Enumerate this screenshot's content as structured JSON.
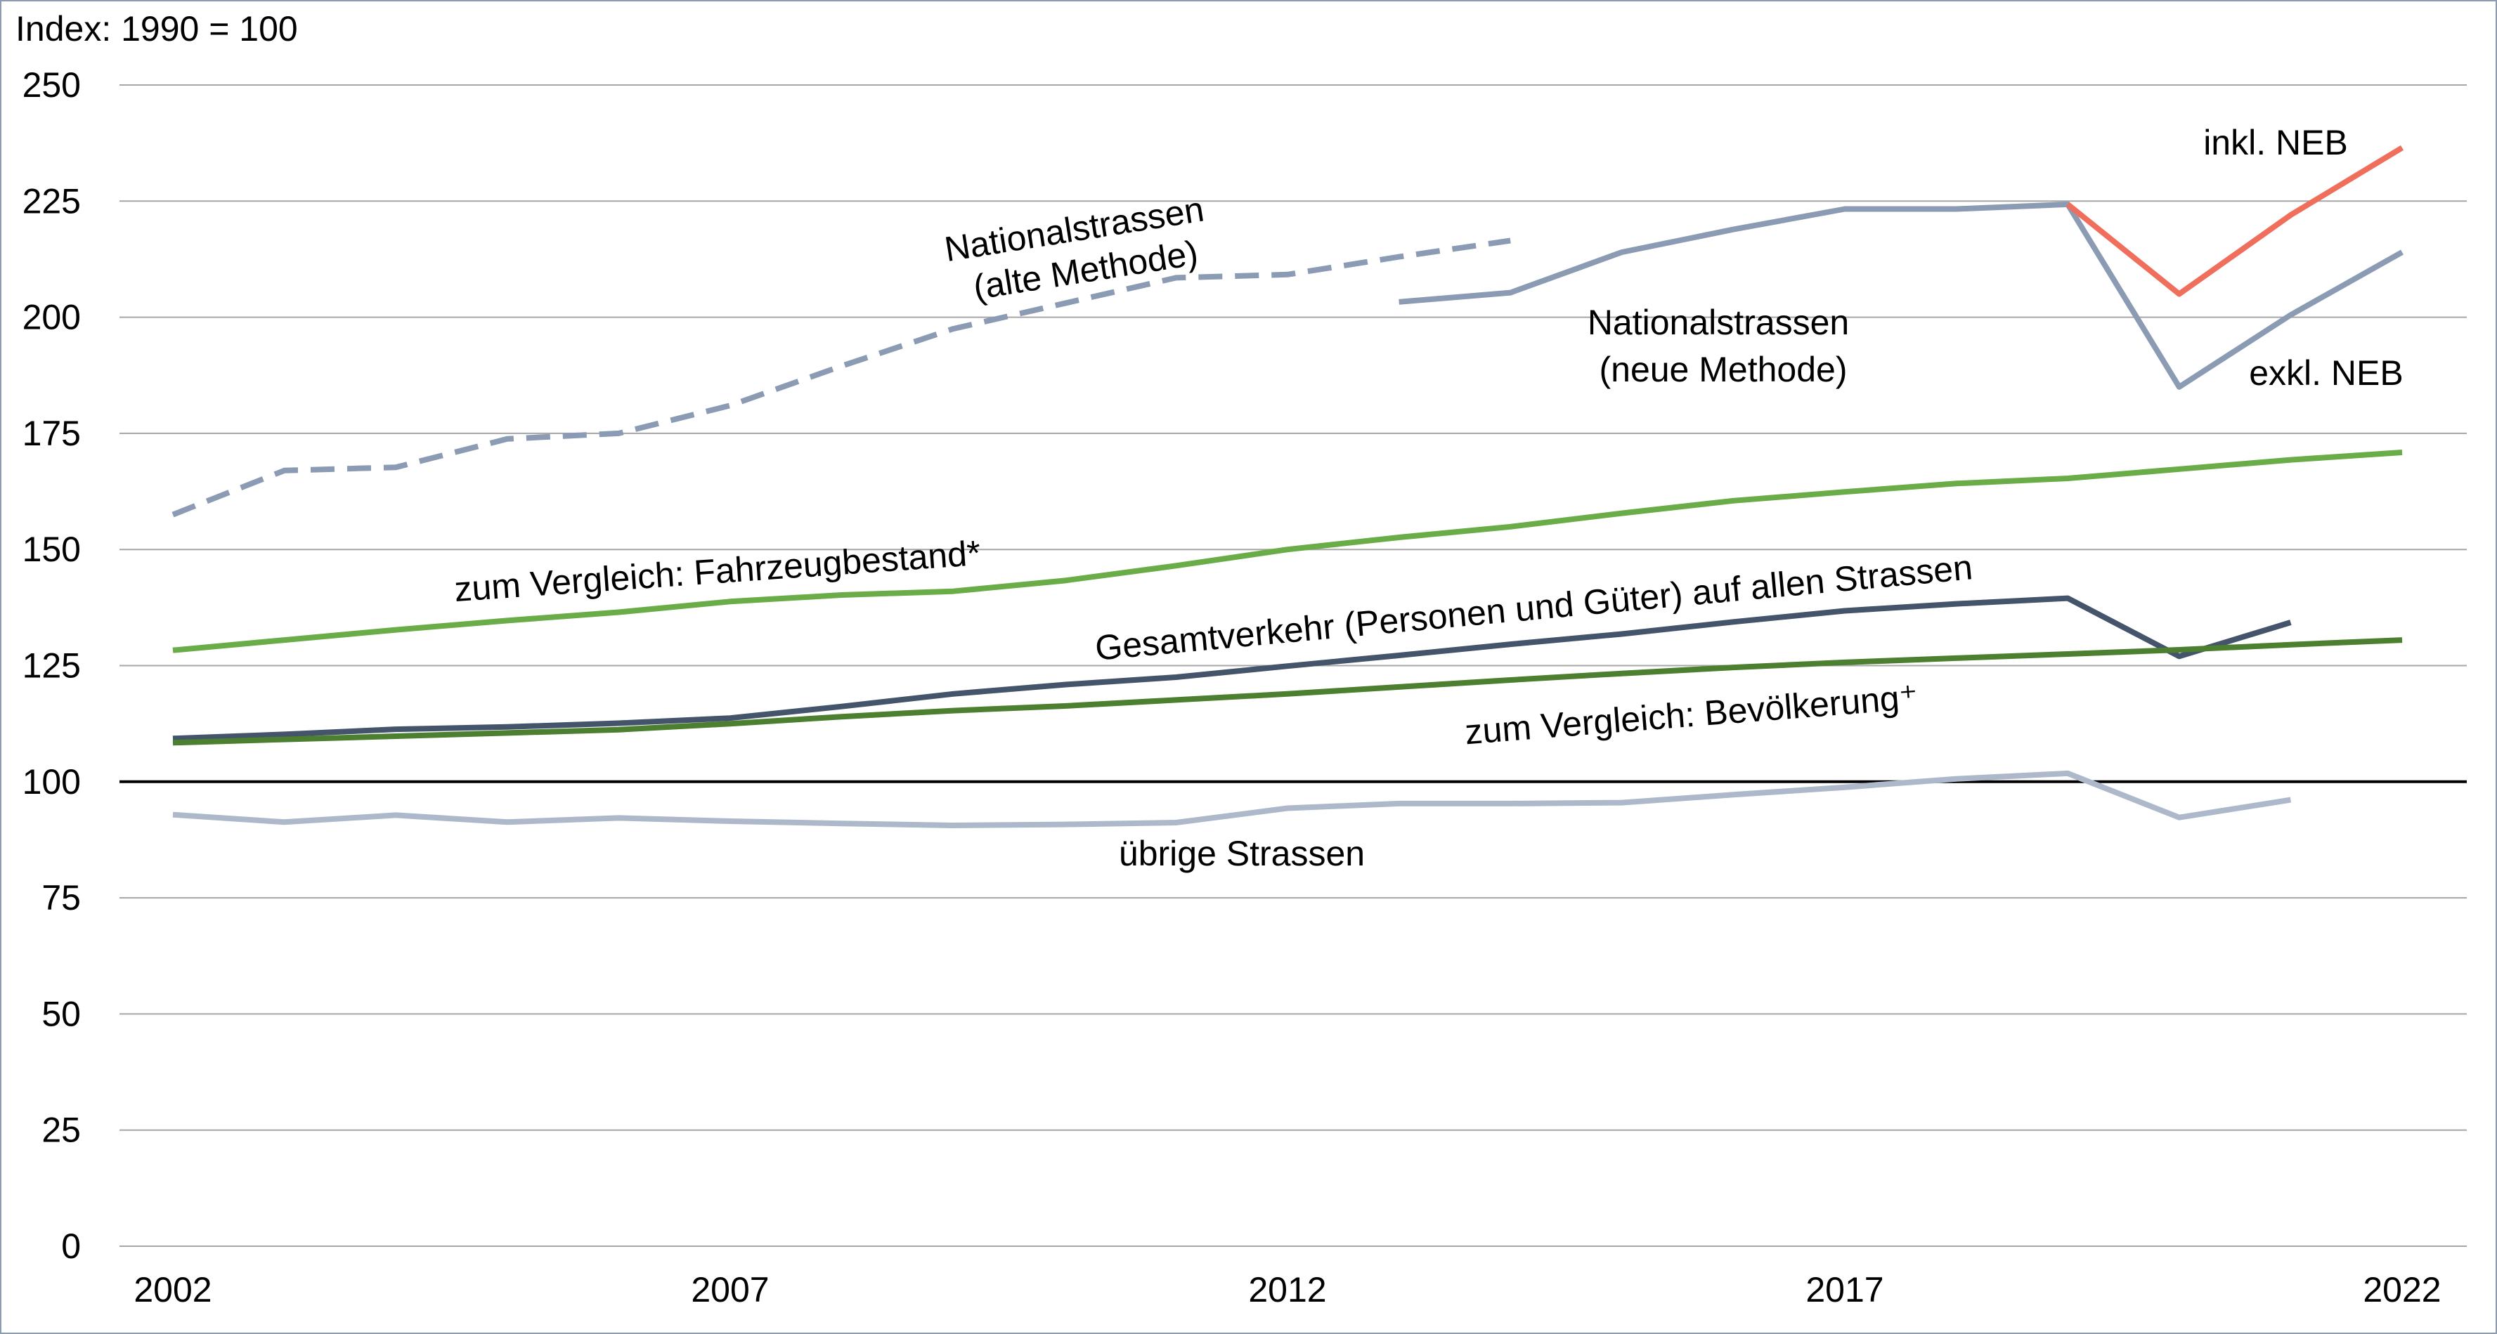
{
  "chart_data": {
    "type": "line",
    "ylabel": "Index: 1990 = 100",
    "ylim": [
      0,
      250
    ],
    "yticks": [
      "0",
      "25",
      "50",
      "75",
      "100",
      "125",
      "150",
      "175",
      "200",
      "225",
      "250"
    ],
    "xlim": [
      2002,
      2022
    ],
    "xticks": [
      "2002",
      "2007",
      "2012",
      "2017",
      "2022"
    ],
    "grid": true,
    "reference_line": 100,
    "series": [
      {
        "key": "national_old",
        "name": "Nationalstrassen (alte Methode)",
        "color": "#8a9bb3",
        "dashed": true,
        "x": [
          2002,
          2003,
          2004,
          2005,
          2006,
          2007,
          2008,
          2009,
          2010,
          2011,
          2012,
          2013,
          2014
        ],
        "values": [
          157.5,
          167,
          167.7,
          173.8,
          175,
          181,
          189.5,
          197.5,
          203,
          208.5,
          209.2,
          213,
          216.5
        ]
      },
      {
        "key": "national_new",
        "name": "Nationalstrassen (neue Methode)",
        "color": "#8a9bb3",
        "dashed": false,
        "x": [
          2013,
          2014,
          2015,
          2016,
          2017,
          2018,
          2019,
          2020,
          2021,
          2022
        ],
        "values": [
          203.3,
          205.3,
          214,
          218.9,
          223.3,
          223.3,
          224.3,
          185,
          200.5,
          214
        ]
      },
      {
        "key": "inkl_neb",
        "name": "inkl. NEB",
        "color": "#f06e5c",
        "dashed": false,
        "x": [
          2019,
          2020,
          2021,
          2022
        ],
        "values": [
          224.3,
          205,
          222,
          236.5
        ]
      },
      {
        "key": "fahrzeugbestand",
        "name": "zum Vergleich: Fahrzeugbestand*",
        "color": "#6aac47",
        "dashed": false,
        "x": [
          2002,
          2003,
          2004,
          2005,
          2006,
          2007,
          2008,
          2009,
          2010,
          2011,
          2012,
          2013,
          2014,
          2015,
          2016,
          2017,
          2018,
          2019,
          2020,
          2021,
          2022
        ],
        "values": [
          128.3,
          130.5,
          132.7,
          134.7,
          136.5,
          138.8,
          140.2,
          141,
          143.3,
          146.5,
          150,
          152.6,
          154.9,
          157.8,
          160.5,
          162.4,
          164.2,
          165.3,
          167.3,
          169.3,
          170.9
        ]
      },
      {
        "key": "gesamtverkehr",
        "name": "Gesamtverkehr (Personen und Güter) auf allen Strassen",
        "color": "#44546a",
        "dashed": false,
        "x": [
          2002,
          2003,
          2004,
          2005,
          2006,
          2007,
          2008,
          2009,
          2010,
          2011,
          2012,
          2013,
          2014,
          2015,
          2016,
          2017,
          2018,
          2019,
          2020,
          2021
        ],
        "values": [
          109.3,
          110.2,
          111.3,
          111.8,
          112.6,
          113.7,
          116.2,
          118.9,
          120.9,
          122.5,
          124.9,
          127.2,
          129.6,
          131.8,
          134.4,
          136.8,
          138.3,
          139.5,
          127,
          134.3
        ]
      },
      {
        "key": "bevoelkerung",
        "name": "zum Vergleich: Bevölkerung⁺",
        "color": "#4c7f2f",
        "dashed": false,
        "x": [
          2002,
          2003,
          2004,
          2005,
          2006,
          2007,
          2008,
          2009,
          2010,
          2011,
          2012,
          2013,
          2014,
          2015,
          2016,
          2017,
          2018,
          2019,
          2020,
          2021,
          2022
        ],
        "values": [
          108.4,
          109.1,
          109.8,
          110.5,
          111.2,
          112.5,
          114,
          115.3,
          116.3,
          117.6,
          118.9,
          120.4,
          121.9,
          123.3,
          124.6,
          125.7,
          126.6,
          127.5,
          128.4,
          129.5,
          130.5
        ]
      },
      {
        "key": "uebrige",
        "name": "übrige Strassen",
        "color": "#adb9ca",
        "dashed": false,
        "x": [
          2002,
          2003,
          2004,
          2005,
          2006,
          2007,
          2008,
          2009,
          2010,
          2011,
          2012,
          2013,
          2014,
          2015,
          2016,
          2017,
          2018,
          2019,
          2020,
          2021
        ],
        "values": [
          92.9,
          91.3,
          92.8,
          91.3,
          92.2,
          91.5,
          91,
          90.6,
          90.8,
          91.2,
          94.3,
          95.3,
          95.3,
          95.5,
          97.2,
          98.8,
          100.6,
          101.8,
          92.3,
          96.1
        ]
      }
    ],
    "labels": {
      "national_old": [
        "Nationalstrassen",
        "(alte Methode)"
      ],
      "national_new": [
        "Nationalstrassen",
        "(neue Methode)"
      ],
      "inkl_neb": "inkl. NEB",
      "exkl_neb": "exkl. NEB",
      "fahrzeugbestand": "zum Vergleich: Fahrzeugbestand*",
      "gesamtverkehr": "Gesamtverkehr (Personen und Güter) auf allen Strassen",
      "bevoelkerung": "zum Vergleich: Bevölkerung⁺",
      "uebrige": "übrige Strassen"
    }
  }
}
